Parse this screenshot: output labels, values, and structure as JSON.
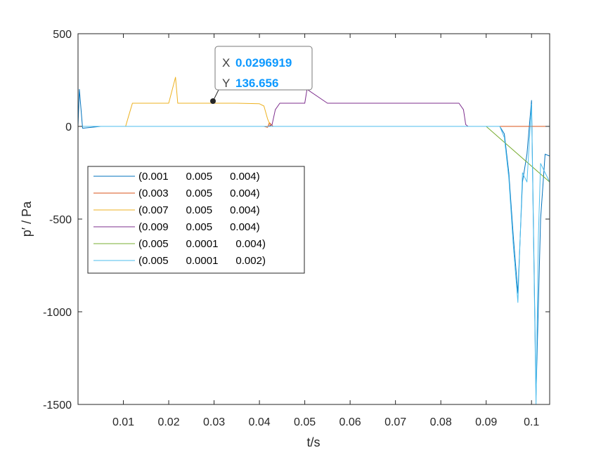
{
  "chart_data": {
    "type": "line",
    "xlabel": "t/s",
    "ylabel": "p′ / Pa",
    "xlim": [
      0,
      0.104
    ],
    "ylim": [
      -1500,
      500
    ],
    "xticks": [
      0.01,
      0.02,
      0.03,
      0.04,
      0.05,
      0.06,
      0.07,
      0.08,
      0.09,
      0.1
    ],
    "xtick_labels": [
      "0.01",
      "0.02",
      "0.03",
      "0.04",
      "0.05",
      "0.06",
      "0.07",
      "0.08",
      "0.09",
      "0.1"
    ],
    "yticks": [
      500,
      0,
      -500,
      -1000,
      -1500
    ],
    "ytick_labels": [
      "500",
      "0",
      "-500",
      "-1000",
      "-1500"
    ],
    "grid": false,
    "legend_position": "left",
    "series": [
      {
        "name": "(0.001      0.005      0.004)",
        "color": "#0072bd",
        "x": [
          0,
          0.0003,
          0.001,
          0.005,
          0.01,
          0.015,
          0.02,
          0.025,
          0.03,
          0.035,
          0.04,
          0.045,
          0.05,
          0.055,
          0.06,
          0.065,
          0.07,
          0.075,
          0.08,
          0.085,
          0.09,
          0.093,
          0.094,
          0.095,
          0.096,
          0.097,
          0.098,
          0.099,
          0.1,
          0.101,
          0.102,
          0.103,
          0.104
        ],
        "y": [
          0,
          200,
          -10,
          0,
          0,
          0,
          0,
          0,
          0,
          0,
          0,
          0,
          0,
          0,
          0,
          0,
          0,
          0,
          0,
          0,
          0,
          0,
          -40,
          -250,
          -600,
          -900,
          -300,
          -150,
          140,
          -1450,
          -500,
          -150,
          -160
        ]
      },
      {
        "name": "(0.003      0.005      0.004)",
        "color": "#d95319",
        "x": [
          0,
          0.041,
          0.0418,
          0.0422,
          0.043,
          0.045,
          0.104
        ],
        "y": [
          0,
          0,
          -5,
          20,
          0,
          0,
          0
        ]
      },
      {
        "name": "(0.007      0.005      0.004)",
        "color": "#edb120",
        "x": [
          0,
          0.0105,
          0.0112,
          0.012,
          0.015,
          0.02,
          0.0215,
          0.022,
          0.025,
          0.03,
          0.035,
          0.04,
          0.041,
          0.0418,
          0.0425,
          0.045
        ],
        "y": [
          0,
          0,
          60,
          125,
          125,
          125,
          265,
          125,
          125,
          125,
          125,
          122,
          110,
          40,
          0,
          0
        ]
      },
      {
        "name": "(0.009      0.005      0.004)",
        "color": "#7e2f8e",
        "x": [
          0.042,
          0.0428,
          0.0435,
          0.0445,
          0.05,
          0.0505,
          0.055,
          0.06,
          0.065,
          0.07,
          0.075,
          0.08,
          0.084,
          0.085,
          0.0855,
          0.086
        ],
        "y": [
          0,
          10,
          90,
          125,
          125,
          200,
          125,
          125,
          125,
          125,
          125,
          125,
          125,
          90,
          10,
          0
        ]
      },
      {
        "name": "(0.005      0.0001      0.004)",
        "color": "#77ac30",
        "x": [
          0,
          0.02,
          0.04,
          0.06,
          0.07,
          0.08,
          0.09,
          0.104
        ],
        "y": [
          0,
          0,
          0,
          0,
          0,
          0,
          0,
          -300
        ]
      },
      {
        "name": "(0.005      0.0001      0.002)",
        "color": "#4dbeee",
        "x": [
          0,
          0.001,
          0.005,
          0.01,
          0.015,
          0.02,
          0.025,
          0.03,
          0.035,
          0.04,
          0.045,
          0.05,
          0.055,
          0.06,
          0.065,
          0.07,
          0.075,
          0.08,
          0.085,
          0.09,
          0.093,
          0.094,
          0.095,
          0.096,
          0.097,
          0.098,
          0.099,
          0.1,
          0.101,
          0.1015,
          0.102,
          0.103,
          0.104
        ],
        "y": [
          0,
          0,
          0,
          0,
          0,
          0,
          0,
          0,
          0,
          0,
          0,
          0,
          0,
          0,
          0,
          0,
          0,
          0,
          0,
          0,
          0,
          -60,
          -280,
          -650,
          -950,
          -250,
          -300,
          120,
          -1500,
          -600,
          -200,
          -250,
          -300
        ]
      }
    ],
    "datatip": {
      "x_key": "X",
      "x_value": "0.0296919",
      "y_key": "Y",
      "y_value": "136.656",
      "x": 0.0296919,
      "y": 136.656
    }
  }
}
